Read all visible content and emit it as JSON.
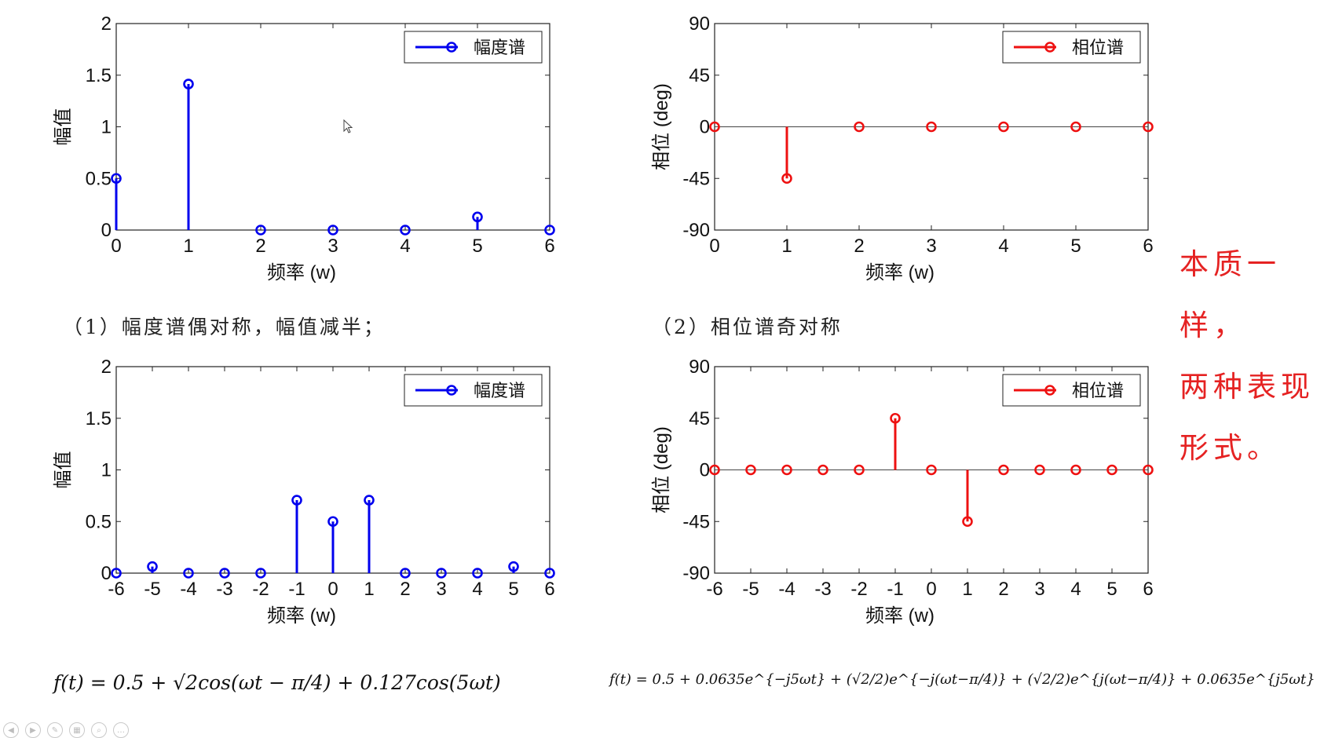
{
  "chart_data": [
    {
      "id": "top-left",
      "type": "stem",
      "x": [
        0,
        1,
        2,
        3,
        4,
        5,
        6
      ],
      "values": [
        0.5,
        1.414,
        0,
        0,
        0,
        0.127,
        0
      ],
      "xlim": [
        0,
        6
      ],
      "ylim": [
        0,
        2
      ],
      "xticks": [
        "0",
        "1",
        "2",
        "3",
        "4",
        "5",
        "6"
      ],
      "yticks": [
        "0",
        "0.5",
        "1",
        "1.5",
        "2"
      ],
      "xlabel": "频率 (w)",
      "ylabel": "幅值",
      "legend": "幅度谱",
      "legend_position": "top-right",
      "color": "#0000ee",
      "zero_line": false
    },
    {
      "id": "top-right",
      "type": "stem",
      "x": [
        0,
        1,
        2,
        3,
        4,
        5,
        6
      ],
      "values": [
        0,
        -45,
        0,
        0,
        0,
        0,
        0
      ],
      "xlim": [
        0,
        6
      ],
      "ylim": [
        -90,
        90
      ],
      "xticks": [
        "0",
        "1",
        "2",
        "3",
        "4",
        "5",
        "6"
      ],
      "yticks": [
        "-90",
        "-45",
        "0",
        "45",
        "90"
      ],
      "xlabel": "频率 (w)",
      "ylabel": "相位 (deg)",
      "legend": "相位谱",
      "legend_position": "top-right",
      "color": "#ee1111",
      "zero_line": true
    },
    {
      "id": "bottom-left",
      "type": "stem",
      "x": [
        -6,
        -5,
        -4,
        -3,
        -2,
        -1,
        0,
        1,
        2,
        3,
        4,
        5,
        6
      ],
      "values": [
        0,
        0.0635,
        0,
        0,
        0,
        0.707,
        0.5,
        0.707,
        0,
        0,
        0,
        0.0635,
        0
      ],
      "xlim": [
        -6,
        6
      ],
      "ylim": [
        0,
        2
      ],
      "xticks": [
        "-6",
        "-5",
        "-4",
        "-3",
        "-2",
        "-1",
        "0",
        "1",
        "2",
        "3",
        "4",
        "5",
        "6"
      ],
      "yticks": [
        "0",
        "0.5",
        "1",
        "1.5",
        "2"
      ],
      "xlabel": "频率 (w)",
      "ylabel": "幅值",
      "legend": "幅度谱",
      "legend_position": "top-right",
      "color": "#0000ee",
      "zero_line": false
    },
    {
      "id": "bottom-right",
      "type": "stem",
      "x": [
        -6,
        -5,
        -4,
        -3,
        -2,
        -1,
        0,
        1,
        2,
        3,
        4,
        5,
        6
      ],
      "values": [
        0,
        0,
        0,
        0,
        0,
        45,
        0,
        -45,
        0,
        0,
        0,
        0,
        0
      ],
      "xlim": [
        -6,
        6
      ],
      "ylim": [
        -90,
        90
      ],
      "xticks": [
        "-6",
        "-5",
        "-4",
        "-3",
        "-2",
        "-1",
        "0",
        "1",
        "2",
        "3",
        "4",
        "5",
        "6"
      ],
      "yticks": [
        "-90",
        "-45",
        "0",
        "45",
        "90"
      ],
      "xlabel": "频率 (w)",
      "ylabel": "相位 (deg)",
      "legend": "相位谱",
      "legend_position": "top-right",
      "color": "#ee1111",
      "zero_line": true
    }
  ],
  "captions": {
    "left": "（1）幅度谱偶对称，幅值减半；",
    "right": "（2）相位谱奇对称"
  },
  "note": {
    "line1": "本质一样，",
    "line2": "两种表现",
    "line3": "形式。"
  },
  "formulas": {
    "left": "f(t) = 0.5 + √2cos(ωt − π/4) + 0.127cos(5ωt)",
    "right": "f(t) = 0.5 + 0.0635e^{−j5ωt} + (√2/2)e^{−j(ωt−π/4)} + (√2/2)e^{j(ωt−π/4)} + 0.0635e^{j5ωt}"
  },
  "toolbar": {
    "icons": [
      "prev-icon",
      "next-icon",
      "pen-icon",
      "grid-icon",
      "zoom-icon",
      "more-icon"
    ]
  }
}
